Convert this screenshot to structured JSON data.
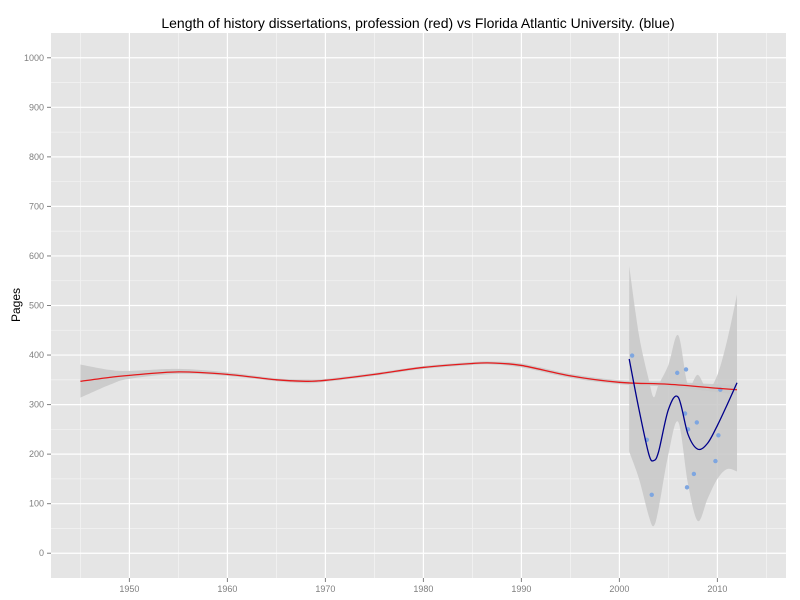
{
  "chart_data": {
    "type": "scatter",
    "title": "Length of history dissertations, profession (red) vs Florida Atlantic University. (blue)",
    "xlabel": "",
    "ylabel": "Pages",
    "xlim": [
      1942,
      2017
    ],
    "ylim": [
      -50,
      1050
    ],
    "x_ticks": [
      1950,
      1960,
      1970,
      1980,
      1990,
      2000,
      2010
    ],
    "y_ticks": [
      0,
      100,
      200,
      300,
      400,
      500,
      600,
      700,
      800,
      900,
      1000
    ],
    "grid": true,
    "legend": "none",
    "colors": {
      "panel": "#e5e5e5",
      "grid_major": "#ffffff",
      "grid_minor": "#f2f2f2",
      "band": "#c8c8c8",
      "profession_line": "#e41a1c",
      "fau_line": "#00008b",
      "fau_points": "#7ea6e0"
    },
    "series": [
      {
        "id": "profession",
        "kind": "smooth",
        "x": [
          1945,
          1948,
          1950,
          1955,
          1960,
          1965,
          1968,
          1970,
          1975,
          1980,
          1985,
          1987,
          1990,
          1995,
          2000,
          2005,
          2010,
          2012
        ],
        "y": [
          347,
          355,
          359,
          366,
          361,
          350,
          347,
          349,
          361,
          375,
          383,
          384,
          379,
          358,
          345,
          341,
          333,
          330
        ],
        "lower": [
          314,
          340,
          352,
          362,
          358,
          347,
          343,
          346,
          358,
          372,
          380,
          381,
          375,
          354,
          341,
          336,
          325,
          320
        ],
        "upper": [
          381,
          370,
          368,
          372,
          365,
          353,
          351,
          352,
          364,
          378,
          386,
          387,
          383,
          362,
          349,
          346,
          341,
          340
        ]
      },
      {
        "id": "fau",
        "kind": "smooth",
        "x": [
          2001,
          2002,
          2003,
          2003.5,
          2004,
          2005,
          2006,
          2007,
          2008,
          2009,
          2010,
          2011,
          2012
        ],
        "y": [
          392,
          290,
          200,
          187,
          205,
          290,
          315,
          240,
          210,
          222,
          258,
          300,
          344
        ],
        "lower": [
          205,
          150,
          75,
          55,
          90,
          200,
          265,
          140,
          65,
          110,
          150,
          170,
          165
        ],
        "upper": [
          580,
          440,
          350,
          315,
          340,
          380,
          440,
          340,
          360,
          330,
          360,
          430,
          522
        ]
      }
    ],
    "points": [
      {
        "x": 2001.3,
        "y": 399
      },
      {
        "x": 2002.8,
        "y": 229
      },
      {
        "x": 2003.3,
        "y": 118
      },
      {
        "x": 2005.9,
        "y": 364
      },
      {
        "x": 2006.7,
        "y": 282
      },
      {
        "x": 2006.8,
        "y": 371
      },
      {
        "x": 2006.9,
        "y": 133
      },
      {
        "x": 2007.0,
        "y": 250
      },
      {
        "x": 2007.6,
        "y": 160
      },
      {
        "x": 2007.9,
        "y": 264
      },
      {
        "x": 2009.8,
        "y": 186
      },
      {
        "x": 2010.1,
        "y": 238
      },
      {
        "x": 2010.3,
        "y": 330
      }
    ]
  }
}
